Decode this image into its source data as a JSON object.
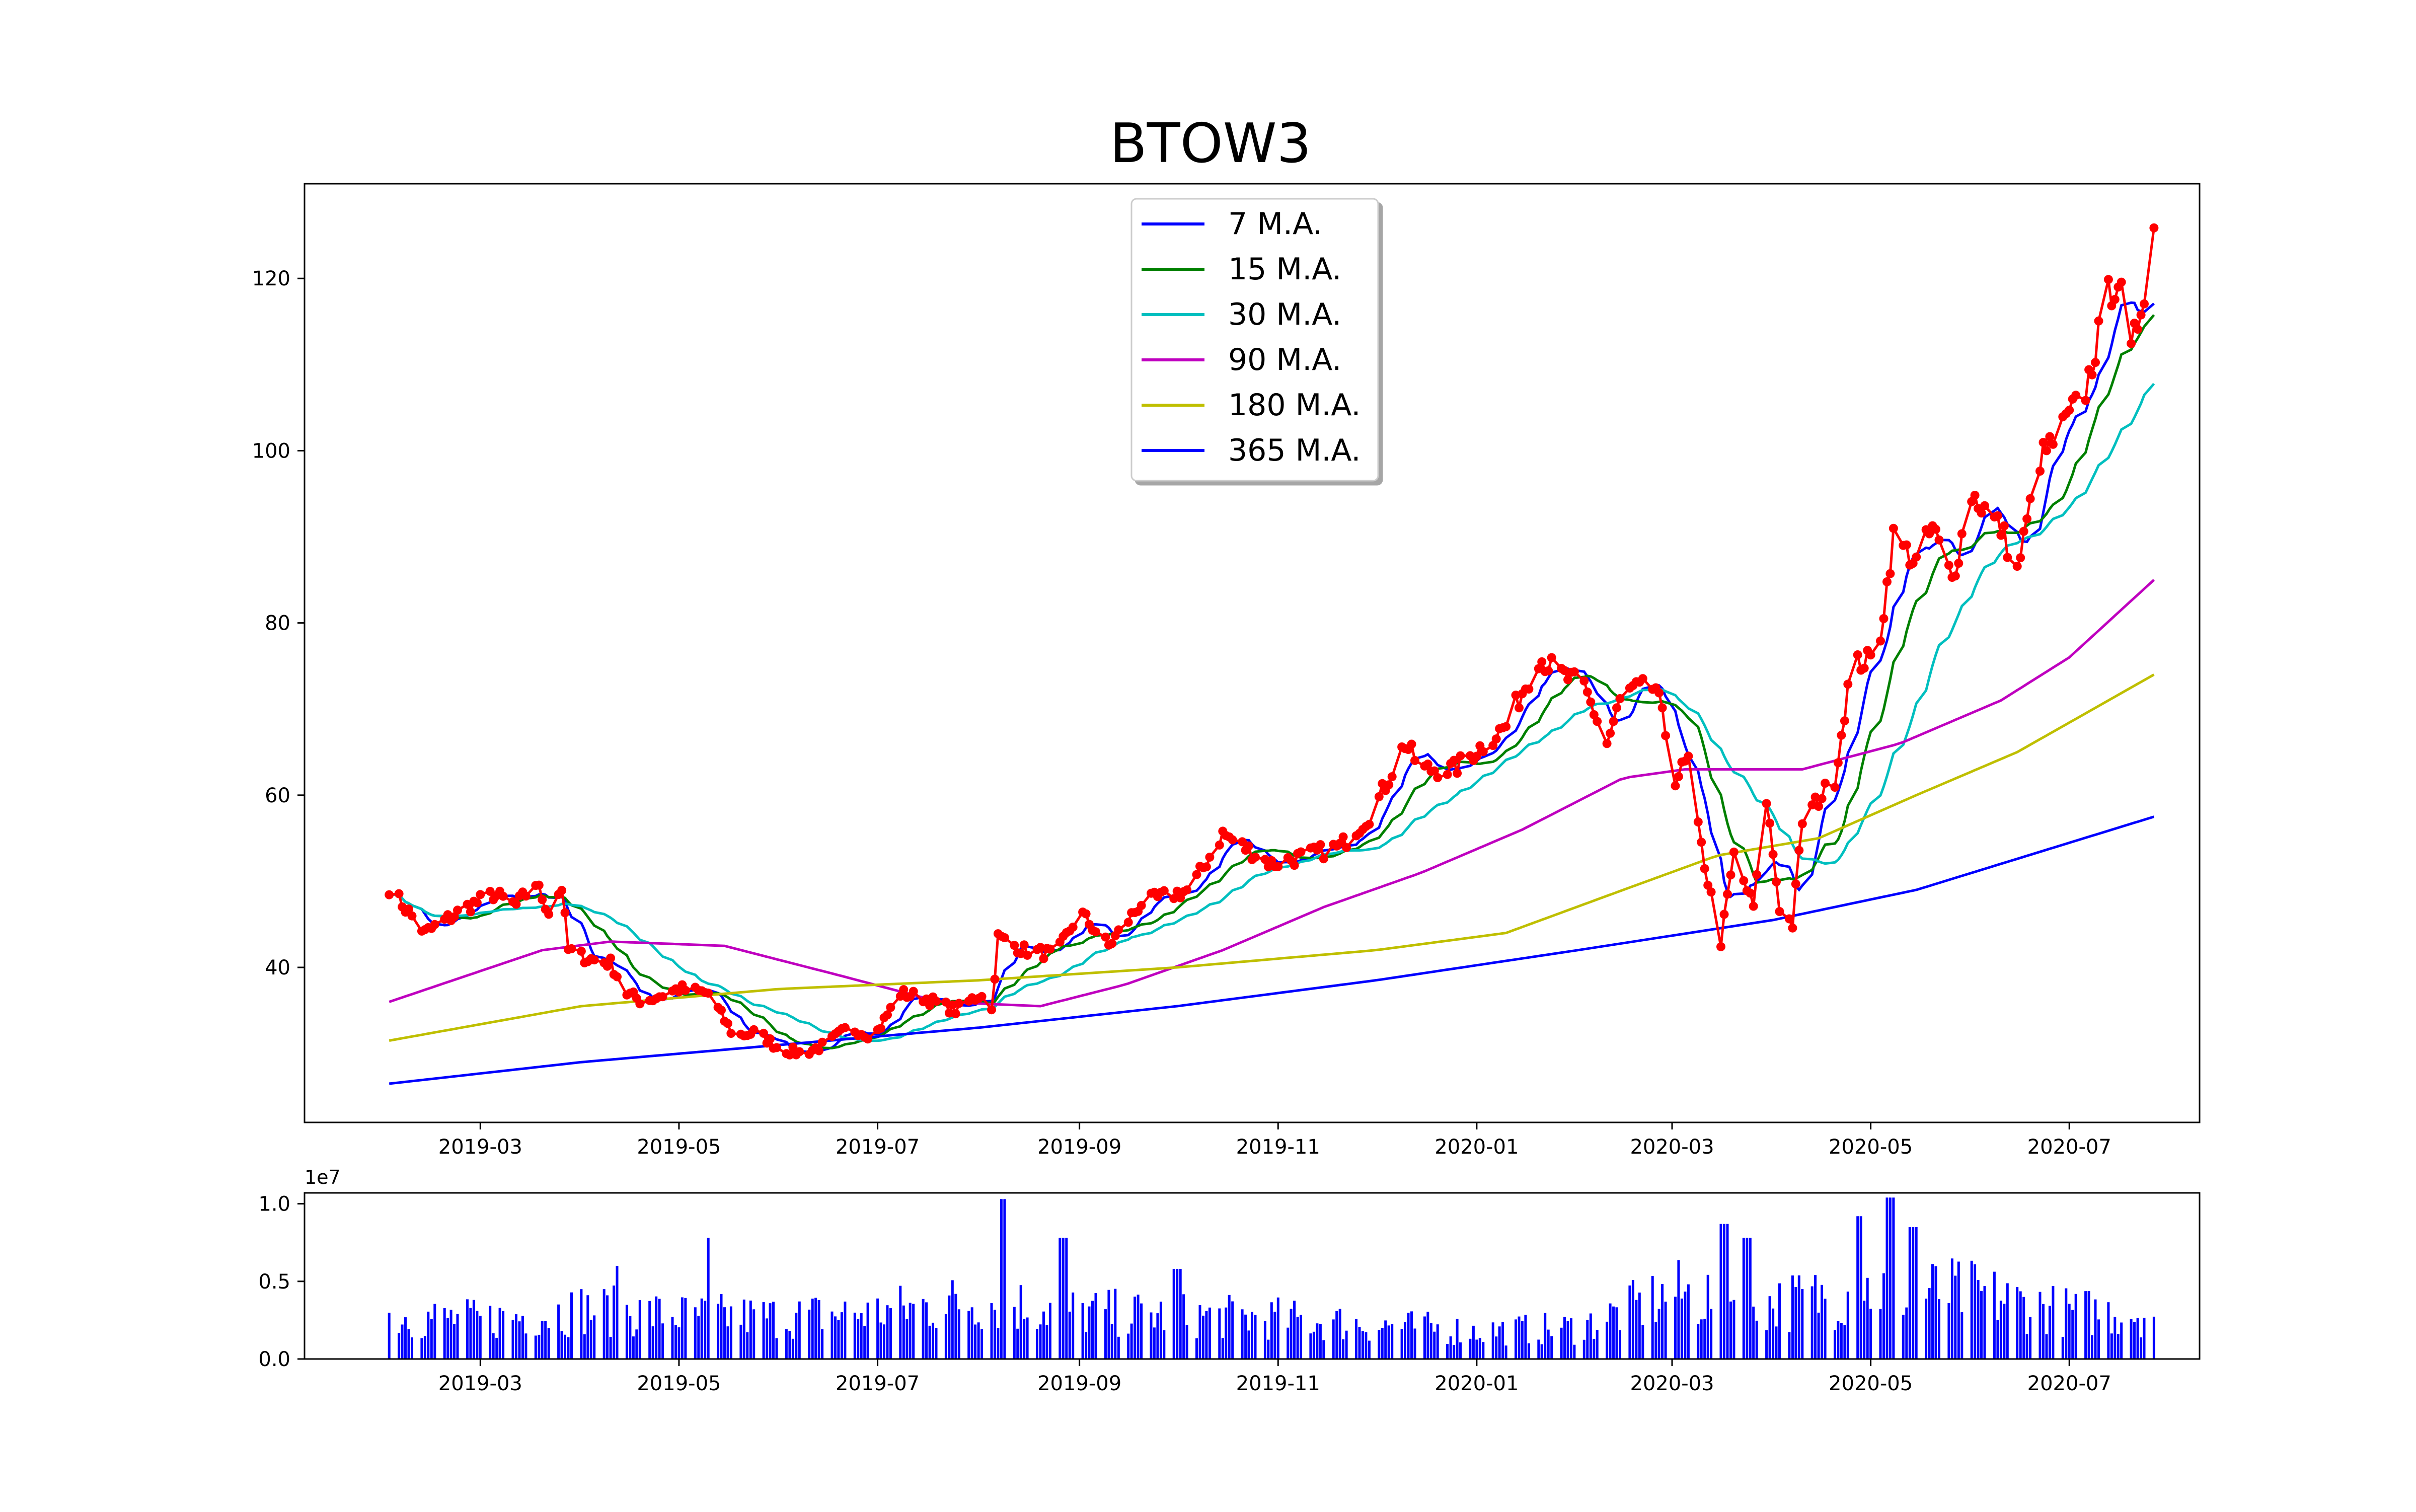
{
  "chart_data": [
    {
      "type": "line",
      "title": "BTOW3",
      "xlabel": "",
      "ylabel": "",
      "x_tick_labels": [
        "2019-03",
        "2019-05",
        "2019-07",
        "2019-09",
        "2019-11",
        "2020-01",
        "2020-03",
        "2020-05",
        "2020-07"
      ],
      "y_tick_labels": [
        "40",
        "60",
        "80",
        "100",
        "120"
      ],
      "y_ticks": [
        40,
        60,
        80,
        100,
        120
      ],
      "ylim": [
        22,
        131
      ],
      "xlim": [
        "2019-01-06",
        "2020-08-10"
      ],
      "grid": false,
      "legend_position": "top-center",
      "price_color": "#ff0000",
      "price_series": {
        "name": "",
        "anchors": [
          [
            "2019-02-01",
            49.3
          ],
          [
            "2019-02-12",
            44
          ],
          [
            "2019-02-25",
            47
          ],
          [
            "2019-03-05",
            48.5
          ],
          [
            "2019-03-12",
            47.2
          ],
          [
            "2019-03-18",
            49.8
          ],
          [
            "2019-03-22",
            46.5
          ],
          [
            "2019-03-26",
            49.3
          ],
          [
            "2019-03-28",
            42
          ],
          [
            "2019-04-03",
            41
          ],
          [
            "2019-04-10",
            40.5
          ],
          [
            "2019-04-15",
            37
          ],
          [
            "2019-04-20",
            36
          ],
          [
            "2019-05-01",
            37.5
          ],
          [
            "2019-05-10",
            37
          ],
          [
            "2019-05-18",
            32
          ],
          [
            "2019-05-25",
            32.5
          ],
          [
            "2019-06-01",
            30.5
          ],
          [
            "2019-06-08",
            30
          ],
          [
            "2019-06-15",
            31
          ],
          [
            "2019-06-22",
            33
          ],
          [
            "2019-06-30",
            32
          ],
          [
            "2019-07-08",
            37
          ],
          [
            "2019-07-15",
            36.5
          ],
          [
            "2019-07-25",
            35
          ],
          [
            "2019-08-02",
            37
          ],
          [
            "2019-08-05",
            35
          ],
          [
            "2019-08-07",
            43.5
          ],
          [
            "2019-08-15",
            42
          ],
          [
            "2019-08-25",
            41.5
          ],
          [
            "2019-09-01",
            46.5
          ],
          [
            "2019-09-10",
            42.5
          ],
          [
            "2019-09-20",
            47.5
          ],
          [
            "2019-10-05",
            49
          ],
          [
            "2019-10-15",
            55.5
          ],
          [
            "2019-10-30",
            52
          ],
          [
            "2019-11-10",
            53
          ],
          [
            "2019-11-20",
            54
          ],
          [
            "2019-11-30",
            58
          ],
          [
            "2019-12-10",
            66
          ],
          [
            "2019-12-15",
            63
          ],
          [
            "2019-12-25",
            63
          ],
          [
            "2020-01-10",
            68
          ],
          [
            "2020-01-20",
            76
          ],
          [
            "2020-01-27",
            74
          ],
          [
            "2020-02-03",
            72.5
          ],
          [
            "2020-02-10",
            66
          ],
          [
            "2020-02-15",
            72
          ],
          [
            "2020-02-25",
            72.5
          ],
          [
            "2020-03-02",
            62
          ],
          [
            "2020-03-06",
            64
          ],
          [
            "2020-03-09",
            56
          ],
          [
            "2020-03-12",
            50
          ],
          [
            "2020-03-16",
            43
          ],
          [
            "2020-03-20",
            53
          ],
          [
            "2020-03-26",
            47
          ],
          [
            "2020-03-30",
            59.5
          ],
          [
            "2020-04-03",
            47
          ],
          [
            "2020-04-07",
            45
          ],
          [
            "2020-04-10",
            57
          ],
          [
            "2020-04-20",
            62
          ],
          [
            "2020-04-25",
            75
          ],
          [
            "2020-05-03",
            76
          ],
          [
            "2020-05-08",
            90
          ],
          [
            "2020-05-15",
            87
          ],
          [
            "2020-05-20",
            91
          ],
          [
            "2020-05-26",
            85
          ],
          [
            "2020-06-01",
            95
          ],
          [
            "2020-06-10",
            91
          ],
          [
            "2020-06-15",
            86
          ],
          [
            "2020-06-22",
            99
          ],
          [
            "2020-06-28",
            102
          ],
          [
            "2020-07-06",
            107
          ],
          [
            "2020-07-13",
            118
          ],
          [
            "2020-07-16",
            120
          ],
          [
            "2020-07-20",
            111
          ],
          [
            "2020-07-24",
            119
          ],
          [
            "2020-07-27",
            126
          ]
        ]
      },
      "series": [
        {
          "name": "7 M.A.",
          "color": "#0000ff",
          "window": 7
        },
        {
          "name": "15 M.A.",
          "color": "#008000",
          "window": 15
        },
        {
          "name": "30 M.A.",
          "color": "#00bfbf",
          "window": 30
        },
        {
          "name": "90 M.A.",
          "color": "#bf00bf",
          "points": [
            [
              "2019-02-01",
              36
            ],
            [
              "2019-03-20",
              42
            ],
            [
              "2019-04-10",
              43
            ],
            [
              "2019-05-15",
              42.5
            ],
            [
              "2019-06-20",
              39
            ],
            [
              "2019-07-20",
              36
            ],
            [
              "2019-08-20",
              35.5
            ],
            [
              "2019-09-15",
              38
            ],
            [
              "2019-10-15",
              42
            ],
            [
              "2019-11-15",
              47
            ],
            [
              "2019-12-15",
              51
            ],
            [
              "2020-01-15",
              56
            ],
            [
              "2020-02-15",
              62
            ],
            [
              "2020-03-05",
              63
            ],
            [
              "2020-04-10",
              63
            ],
            [
              "2020-05-10",
              66
            ],
            [
              "2020-06-10",
              71
            ],
            [
              "2020-07-01",
              76
            ],
            [
              "2020-07-27",
              85
            ]
          ]
        },
        {
          "name": "180 M.A.",
          "color": "#bfbf00",
          "points": [
            [
              "2019-02-01",
              31.5
            ],
            [
              "2019-04-01",
              35.5
            ],
            [
              "2019-06-01",
              37.5
            ],
            [
              "2019-08-01",
              38.5
            ],
            [
              "2019-10-01",
              40
            ],
            [
              "2019-12-01",
              42
            ],
            [
              "2020-01-10",
              44
            ],
            [
              "2020-02-15",
              49
            ],
            [
              "2020-03-15",
              53
            ],
            [
              "2020-04-15",
              55
            ],
            [
              "2020-05-15",
              60
            ],
            [
              "2020-06-15",
              65
            ],
            [
              "2020-07-27",
              74
            ]
          ]
        },
        {
          "name": "365 M.A.",
          "color": "#0000ff",
          "points": [
            [
              "2019-02-01",
              26.5
            ],
            [
              "2019-04-01",
              29
            ],
            [
              "2019-06-01",
              31
            ],
            [
              "2019-08-01",
              33
            ],
            [
              "2019-10-01",
              35.5
            ],
            [
              "2019-12-01",
              38.5
            ],
            [
              "2020-02-01",
              42
            ],
            [
              "2020-04-01",
              45.5
            ],
            [
              "2020-05-15",
              49
            ],
            [
              "2020-07-27",
              57.5
            ]
          ]
        }
      ]
    },
    {
      "type": "bar",
      "title": "",
      "y_tick_labels": [
        "0.0",
        "0.5",
        "1.0"
      ],
      "y_ticks": [
        0,
        0.5,
        1.0
      ],
      "offset_text": "1e7",
      "ylim": [
        0,
        1.07
      ],
      "x_tick_labels": [
        "2019-03",
        "2019-05",
        "2019-07",
        "2019-09",
        "2019-11",
        "2020-01",
        "2020-03",
        "2020-05",
        "2020-07"
      ],
      "bar_color": "#0000ff",
      "volume_anchors": [
        [
          "2019-02-01",
          0.28
        ],
        [
          "2019-03-01",
          0.25
        ],
        [
          "2019-04-01",
          0.32
        ],
        [
          "2019-05-01",
          0.28
        ],
        [
          "2019-06-01",
          0.27
        ],
        [
          "2019-07-01",
          0.3
        ],
        [
          "2019-08-01",
          0.38
        ],
        [
          "2019-09-01",
          0.3
        ],
        [
          "2019-10-01",
          0.28
        ],
        [
          "2019-11-01",
          0.26
        ],
        [
          "2019-12-01",
          0.22
        ],
        [
          "2020-01-01",
          0.18
        ],
        [
          "2020-02-01",
          0.2
        ],
        [
          "2020-03-01",
          0.42
        ],
        [
          "2020-04-01",
          0.35
        ],
        [
          "2020-05-01",
          0.45
        ],
        [
          "2020-06-01",
          0.42
        ],
        [
          "2020-07-01",
          0.3
        ],
        [
          "2020-07-27",
          0.3
        ]
      ],
      "volume_peaks": [
        [
          "2019-04-13",
          0.6
        ],
        [
          "2019-05-11",
          0.78
        ],
        [
          "2019-08-09",
          1.03
        ],
        [
          "2019-08-27",
          0.78
        ],
        [
          "2019-10-01",
          0.58
        ],
        [
          "2020-03-17",
          0.87
        ],
        [
          "2020-03-24",
          0.78
        ],
        [
          "2020-04-27",
          0.92
        ],
        [
          "2020-05-07",
          1.04
        ],
        [
          "2020-05-14",
          0.85
        ]
      ]
    }
  ]
}
